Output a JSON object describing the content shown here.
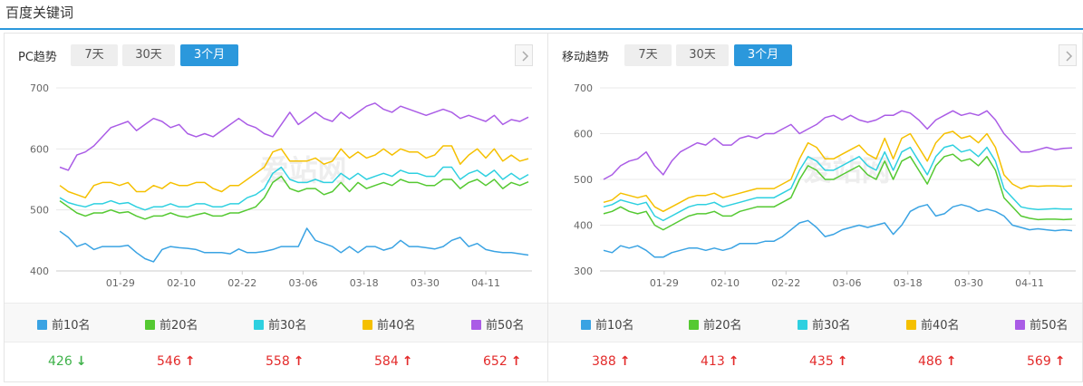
{
  "page": {
    "title": "百度关键词"
  },
  "tabs": [
    "7天",
    "30天",
    "3个月"
  ],
  "active_tab": 2,
  "panels": [
    {
      "id": "pc",
      "label": "PC趋势",
      "watermark": "爱站网",
      "legend": [
        "前10名",
        "前20名",
        "前30名",
        "前40名",
        "前50名"
      ],
      "values": [
        {
          "value": "426",
          "trend": "down"
        },
        {
          "value": "546",
          "trend": "up"
        },
        {
          "value": "558",
          "trend": "up"
        },
        {
          "value": "584",
          "trend": "up"
        },
        {
          "value": "652",
          "trend": "up"
        }
      ]
    },
    {
      "id": "mobile",
      "label": "移动趋势",
      "watermark": "爱站网",
      "legend": [
        "前10名",
        "前20名",
        "前30名",
        "前40名",
        "前50名"
      ],
      "values": [
        {
          "value": "388",
          "trend": "up"
        },
        {
          "value": "413",
          "trend": "up"
        },
        {
          "value": "435",
          "trend": "up"
        },
        {
          "value": "486",
          "trend": "up"
        },
        {
          "value": "569",
          "trend": "up"
        }
      ]
    }
  ],
  "icons": {
    "up": "arrow-up-icon",
    "down": "arrow-down-icon",
    "next": "chevron-right-icon"
  },
  "colors": {
    "accent": "#2b98dc",
    "series": [
      "#3aa3e3",
      "#55c932",
      "#2ed0e0",
      "#f5c000",
      "#aa5ce6"
    ],
    "up": "#e32b2b",
    "down": "#3fb24a"
  },
  "chart_data": [
    {
      "type": "line",
      "ylim": [
        400,
        700
      ],
      "yticks": [
        400,
        500,
        600,
        700
      ],
      "xticks": [
        "01-29",
        "02-10",
        "02-22",
        "03-06",
        "03-18",
        "03-30",
        "04-11"
      ],
      "x_range": [
        "01-17",
        "04-16"
      ],
      "series": [
        {
          "name": "前10名",
          "values": [
            465,
            455,
            440,
            445,
            435,
            440,
            440,
            440,
            442,
            430,
            420,
            415,
            435,
            440,
            438,
            437,
            435,
            430,
            430,
            430,
            428,
            436,
            430,
            430,
            432,
            435,
            440,
            440,
            440,
            470,
            450,
            445,
            440,
            430,
            440,
            430,
            440,
            440,
            434,
            438,
            450,
            440,
            440,
            438,
            436,
            440,
            450,
            455,
            440,
            445,
            435,
            432,
            430,
            430,
            428,
            426
          ]
        },
        {
          "name": "前20名",
          "values": [
            515,
            505,
            495,
            490,
            495,
            495,
            500,
            495,
            497,
            490,
            485,
            490,
            490,
            495,
            490,
            488,
            492,
            495,
            490,
            490,
            495,
            495,
            500,
            505,
            520,
            545,
            555,
            535,
            530,
            535,
            535,
            525,
            530,
            545,
            530,
            545,
            535,
            540,
            545,
            540,
            550,
            545,
            545,
            540,
            540,
            550,
            550,
            535,
            545,
            550,
            540,
            550,
            535,
            545,
            540,
            546
          ]
        },
        {
          "name": "前30名",
          "values": [
            520,
            512,
            508,
            505,
            510,
            510,
            515,
            510,
            512,
            505,
            500,
            505,
            505,
            510,
            505,
            505,
            510,
            510,
            505,
            505,
            510,
            510,
            520,
            525,
            535,
            560,
            570,
            550,
            545,
            545,
            550,
            545,
            545,
            560,
            550,
            560,
            550,
            555,
            560,
            555,
            565,
            560,
            560,
            555,
            555,
            570,
            570,
            550,
            560,
            565,
            555,
            565,
            550,
            560,
            550,
            558
          ]
        },
        {
          "name": "前40名",
          "values": [
            540,
            530,
            525,
            520,
            540,
            545,
            545,
            540,
            545,
            530,
            530,
            540,
            535,
            545,
            540,
            540,
            545,
            545,
            535,
            530,
            540,
            540,
            550,
            560,
            570,
            595,
            600,
            580,
            580,
            580,
            585,
            575,
            580,
            600,
            585,
            595,
            585,
            590,
            600,
            590,
            600,
            595,
            595,
            585,
            590,
            605,
            605,
            575,
            590,
            600,
            585,
            600,
            580,
            590,
            580,
            584
          ]
        },
        {
          "name": "前50名",
          "values": [
            570,
            565,
            590,
            595,
            605,
            620,
            635,
            640,
            645,
            630,
            640,
            650,
            645,
            635,
            640,
            625,
            620,
            625,
            620,
            630,
            640,
            650,
            640,
            635,
            625,
            620,
            640,
            660,
            640,
            650,
            660,
            650,
            645,
            660,
            650,
            660,
            670,
            675,
            665,
            660,
            670,
            665,
            660,
            655,
            660,
            665,
            660,
            650,
            655,
            650,
            645,
            655,
            640,
            648,
            645,
            652
          ]
        }
      ]
    },
    {
      "type": "line",
      "ylim": [
        300,
        700
      ],
      "yticks": [
        300,
        400,
        500,
        600,
        700
      ],
      "xticks": [
        "01-29",
        "02-10",
        "02-22",
        "03-06",
        "03-18",
        "03-30",
        "04-11"
      ],
      "x_range": [
        "01-17",
        "04-16"
      ],
      "series": [
        {
          "name": "前10名",
          "values": [
            345,
            340,
            355,
            350,
            355,
            345,
            330,
            330,
            340,
            345,
            350,
            350,
            345,
            350,
            345,
            350,
            360,
            360,
            360,
            365,
            365,
            375,
            390,
            405,
            410,
            395,
            375,
            380,
            390,
            395,
            400,
            395,
            400,
            405,
            380,
            400,
            430,
            440,
            445,
            420,
            425,
            440,
            445,
            440,
            430,
            435,
            430,
            420,
            400,
            395,
            390,
            392,
            390,
            388,
            390,
            388
          ]
        },
        {
          "name": "前20名",
          "values": [
            425,
            430,
            440,
            430,
            425,
            430,
            400,
            390,
            400,
            410,
            420,
            425,
            425,
            430,
            420,
            420,
            430,
            435,
            440,
            440,
            440,
            450,
            460,
            500,
            530,
            520,
            500,
            500,
            510,
            520,
            530,
            510,
            500,
            540,
            500,
            540,
            550,
            520,
            490,
            530,
            550,
            555,
            540,
            545,
            530,
            550,
            520,
            460,
            440,
            420,
            415,
            412,
            413,
            413,
            412,
            413
          ]
        },
        {
          "name": "前30名",
          "values": [
            440,
            445,
            455,
            450,
            445,
            450,
            420,
            410,
            420,
            430,
            440,
            445,
            445,
            450,
            440,
            445,
            450,
            455,
            460,
            460,
            460,
            470,
            480,
            520,
            550,
            540,
            520,
            520,
            530,
            540,
            550,
            530,
            520,
            560,
            520,
            560,
            570,
            540,
            510,
            550,
            570,
            575,
            560,
            565,
            550,
            570,
            540,
            480,
            460,
            440,
            436,
            434,
            435,
            436,
            435,
            435
          ]
        },
        {
          "name": "前40名",
          "values": [
            450,
            455,
            470,
            465,
            460,
            465,
            440,
            430,
            440,
            450,
            460,
            465,
            465,
            470,
            460,
            465,
            470,
            475,
            480,
            480,
            480,
            490,
            500,
            545,
            580,
            570,
            545,
            545,
            555,
            565,
            575,
            555,
            545,
            590,
            545,
            590,
            600,
            570,
            540,
            580,
            600,
            605,
            590,
            595,
            580,
            600,
            570,
            510,
            490,
            480,
            486,
            485,
            486,
            486,
            485,
            486
          ]
        },
        {
          "name": "前50名",
          "values": [
            500,
            510,
            530,
            540,
            545,
            560,
            530,
            510,
            540,
            560,
            570,
            580,
            575,
            590,
            575,
            575,
            590,
            595,
            590,
            600,
            600,
            610,
            620,
            600,
            610,
            620,
            635,
            640,
            630,
            640,
            630,
            625,
            630,
            640,
            640,
            650,
            645,
            630,
            610,
            630,
            640,
            650,
            640,
            645,
            640,
            650,
            630,
            600,
            580,
            560,
            560,
            565,
            570,
            565,
            568,
            569
          ]
        }
      ]
    }
  ]
}
